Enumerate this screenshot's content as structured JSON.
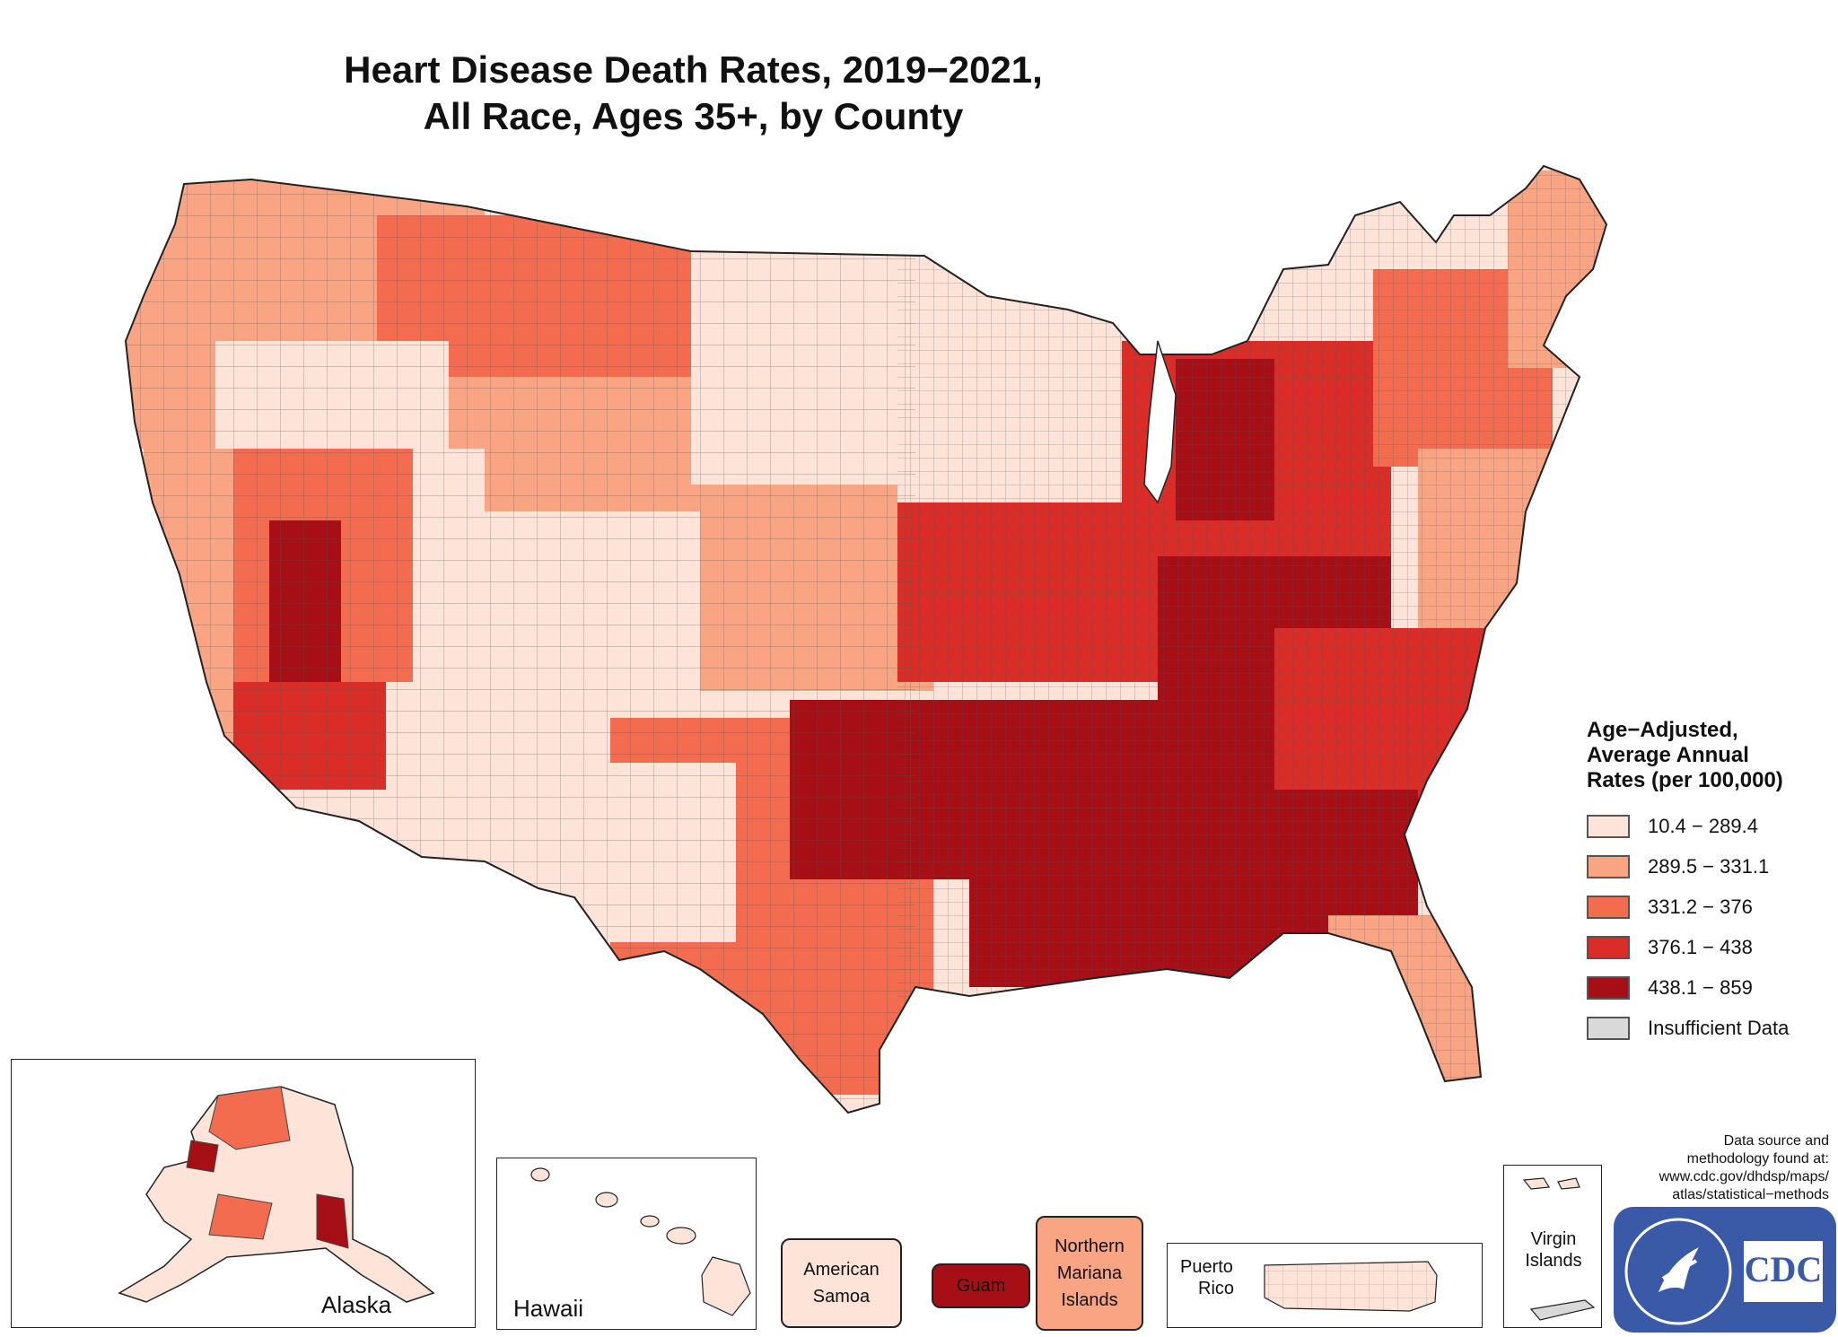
{
  "title": {
    "line1": "Heart Disease Death Rates, 2019−2021,",
    "line2": "All Race, Ages 35+, by County"
  },
  "colors": {
    "class1": "#fde3d8",
    "class2": "#f9a584",
    "class3": "#f36c4f",
    "class4": "#da2d27",
    "class5": "#a50f15",
    "insufficient": "#d9d9d9",
    "border": "#555555",
    "cdc_blue": "#3a5aa8"
  },
  "legend": {
    "title_line1": "Age−Adjusted,",
    "title_line2": "Average Annual",
    "title_line3": "Rates (per 100,000)",
    "items": [
      {
        "label": "10.4 − 289.4",
        "color": "#fde3d8"
      },
      {
        "label": "289.5 − 331.1",
        "color": "#f9a584"
      },
      {
        "label": "331.2 − 376",
        "color": "#f36c4f"
      },
      {
        "label": "376.1 − 438",
        "color": "#da2d27"
      },
      {
        "label": "438.1 − 859",
        "color": "#a50f15"
      },
      {
        "label": "Insufficient Data",
        "color": "#d9d9d9"
      }
    ]
  },
  "insets": {
    "alaska": "Alaska",
    "hawaii": "Hawaii",
    "puerto_rico_line1": "Puerto",
    "puerto_rico_line2": "Rico",
    "virgin_islands_line1": "Virgin",
    "virgin_islands_line2": "Islands"
  },
  "territories": {
    "american_samoa_line1": "American",
    "american_samoa_line2": "Samoa",
    "guam": "Guam",
    "northern_mariana_line1": "Northern",
    "northern_mariana_line2": "Mariana",
    "northern_mariana_line3": "Islands"
  },
  "source": {
    "line1": "Data source and",
    "line2": "methodology found at:",
    "line3": "www.cdc.gov/dhdsp/maps/",
    "line4": "atlas/statistical−methods"
  },
  "logo": {
    "text": "CDC",
    "icon": "hhs-eagle-icon"
  }
}
